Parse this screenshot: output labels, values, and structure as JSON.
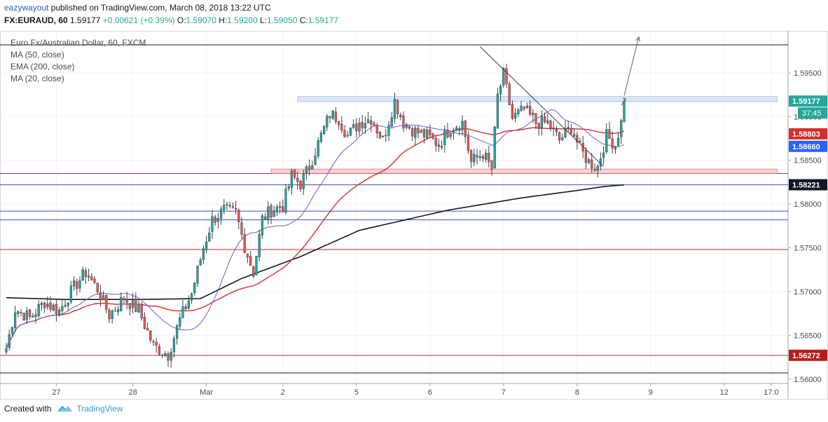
{
  "header": {
    "user": "eazywayout",
    "published_text": " published on TradingView.com, March 08, 2018 13:22 UTC",
    "symbol": "FX:EURAUD, 60",
    "last": "1.59177",
    "change": "+0.00621 (+0.39%)",
    "o_label": "O:",
    "o": "1.59070",
    "h_label": "H:",
    "h": "1.59200",
    "l_label": "L:",
    "l": "1.59050",
    "c_label": "C:",
    "c": "1.59177"
  },
  "legend": {
    "title": "Euro Fx/Australian Dollar, 60, FXCM",
    "ind1": "MA (50, close)",
    "ind2": "EMA (200, close)",
    "ind3": "MA (20, close)"
  },
  "footer": {
    "created_with": "Created with",
    "brand": "TradingView"
  },
  "colors": {
    "up": "#26a69a",
    "down": "#ef5350",
    "ma50": "#d32f2f",
    "ema200": "#131722",
    "ma20": "#7e57c2",
    "blue_line": "#3f51b5",
    "red_line": "#c62828",
    "purple_line": "#9c27b0",
    "resistance_zone": "#cfe0f5",
    "support_zone": "#f8c7c7"
  },
  "chart_data": {
    "type": "candlestick",
    "title": "Euro Fx/Australian Dollar, 60, FXCM",
    "ylim": [
      1.5595,
      1.5998
    ],
    "x_ticks": [
      {
        "label": "27",
        "i": 17
      },
      {
        "label": "28",
        "i": 43
      },
      {
        "label": "Mar",
        "i": 68
      },
      {
        "label": "2",
        "i": 94
      },
      {
        "label": "5",
        "i": 119
      },
      {
        "label": "6",
        "i": 144
      },
      {
        "label": "7",
        "i": 169
      },
      {
        "label": "8",
        "i": 194
      },
      {
        "label": "9",
        "i": 219
      },
      {
        "label": "12",
        "i": 244
      },
      {
        "label": "17:0",
        "i": 260
      }
    ],
    "y_ticks": [
      1.56,
      1.565,
      1.57,
      1.575,
      1.58,
      1.585,
      1.59,
      1.595
    ],
    "y_tick_labels": [
      "1.56000",
      "1.56500",
      "1.57000",
      "1.57500",
      "1.58000",
      "1.58500",
      "1.59000",
      "1.59500"
    ],
    "price_labels": [
      {
        "value": 1.59177,
        "text": "1.59177",
        "bg": "#26a69a"
      },
      {
        "value": 1.58803,
        "text": "1.58803",
        "bg": "#d32f2f"
      },
      {
        "value": 1.5866,
        "text": "1.58660",
        "bg": "#2962ff"
      },
      {
        "value": 1.58221,
        "text": "1.58221",
        "bg": "#131722"
      },
      {
        "value": 1.56272,
        "text": "1.56272",
        "bg": "#b71c1c"
      }
    ],
    "countdown": "37:45",
    "hlines": [
      {
        "value": 1.5982,
        "color": "#131722"
      },
      {
        "value": 1.5835,
        "color": "#9c27b0"
      },
      {
        "value": 1.5822,
        "color": "#3f51b5"
      },
      {
        "value": 1.5792,
        "color": "#3f51b5"
      },
      {
        "value": 1.5782,
        "color": "#3f51b5"
      },
      {
        "value": 1.5748,
        "color": "#c62828"
      },
      {
        "value": 1.5627,
        "color": "#c62828"
      },
      {
        "value": 1.5607,
        "color": "#131722"
      }
    ],
    "zones": [
      {
        "i0": 99,
        "i1": 262,
        "top": 1.5923,
        "bottom": 1.5917,
        "kind": "resistance"
      },
      {
        "i0": 90,
        "i1": 262,
        "top": 1.584,
        "bottom": 1.5835,
        "kind": "support"
      }
    ],
    "trendline": {
      "i0": 161,
      "p0": 1.598,
      "i1": 203,
      "p1": 1.5843
    },
    "arrow": {
      "i0": 210,
      "p0": 1.5924,
      "i1": 215,
      "p1": 1.5991
    },
    "anchors": [
      [
        0,
        1.5635
      ],
      [
        3,
        1.568
      ],
      [
        8,
        1.567
      ],
      [
        13,
        1.5688
      ],
      [
        18,
        1.5678
      ],
      [
        23,
        1.5705
      ],
      [
        27,
        1.5722
      ],
      [
        31,
        1.5703
      ],
      [
        35,
        1.5673
      ],
      [
        40,
        1.5693
      ],
      [
        45,
        1.5678
      ],
      [
        50,
        1.5638
      ],
      [
        55,
        1.5628
      ],
      [
        59,
        1.5668
      ],
      [
        63,
        1.5698
      ],
      [
        67,
        1.575
      ],
      [
        70,
        1.5782
      ],
      [
        74,
        1.5793
      ],
      [
        78,
        1.579
      ],
      [
        81,
        1.5752
      ],
      [
        84,
        1.5722
      ],
      [
        87,
        1.5783
      ],
      [
        90,
        1.5793
      ],
      [
        94,
        1.5798
      ],
      [
        97,
        1.5832
      ],
      [
        100,
        1.5823
      ],
      [
        103,
        1.5843
      ],
      [
        107,
        1.5878
      ],
      [
        110,
        1.5903
      ],
      [
        113,
        1.5898
      ],
      [
        116,
        1.5878
      ],
      [
        120,
        1.5893
      ],
      [
        124,
        1.5898
      ],
      [
        128,
        1.5873
      ],
      [
        132,
        1.5918
      ],
      [
        135,
        1.5893
      ],
      [
        139,
        1.5883
      ],
      [
        143,
        1.5878
      ],
      [
        147,
        1.5868
      ],
      [
        151,
        1.5888
      ],
      [
        155,
        1.5893
      ],
      [
        158,
        1.5848
      ],
      [
        162,
        1.5858
      ],
      [
        165,
        1.584
      ],
      [
        167,
        1.5923
      ],
      [
        169,
        1.5948
      ],
      [
        172,
        1.5898
      ],
      [
        176,
        1.5908
      ],
      [
        180,
        1.5893
      ],
      [
        184,
        1.5893
      ],
      [
        188,
        1.5873
      ],
      [
        192,
        1.5888
      ],
      [
        195,
        1.5863
      ],
      [
        198,
        1.5848
      ],
      [
        201,
        1.5843
      ],
      [
        204,
        1.5878
      ],
      [
        207,
        1.5868
      ],
      [
        209,
        1.5893
      ],
      [
        210,
        1.5918
      ]
    ],
    "ema200_anchors": [
      [
        0,
        1.5693
      ],
      [
        20,
        1.5691
      ],
      [
        45,
        1.5691
      ],
      [
        66,
        1.5692
      ],
      [
        80,
        1.5715
      ],
      [
        100,
        1.574
      ],
      [
        120,
        1.577
      ],
      [
        150,
        1.5793
      ],
      [
        175,
        1.5807
      ],
      [
        195,
        1.5816
      ],
      [
        203,
        1.582
      ],
      [
        210,
        1.5822
      ]
    ]
  }
}
